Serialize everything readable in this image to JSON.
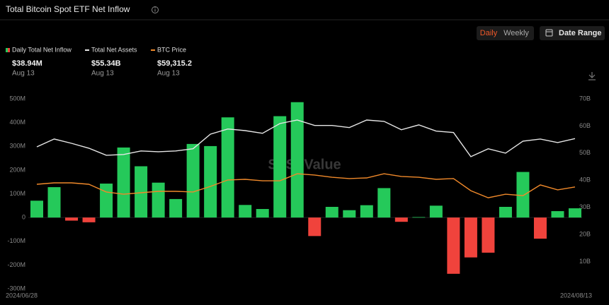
{
  "chart_data": {
    "type": "bar",
    "title": "Total Bitcoin Spot ETF Net Inflow",
    "controls": [
      "Daily",
      "Weekly",
      "Date Range"
    ],
    "active_control": 0,
    "watermark": "SoSoValue",
    "categories": [
      "2024/06/28",
      null,
      null,
      null,
      null,
      null,
      null,
      null,
      null,
      null,
      null,
      null,
      null,
      null,
      null,
      null,
      null,
      null,
      null,
      null,
      null,
      null,
      null,
      null,
      null,
      null,
      null,
      null,
      null,
      null,
      null,
      "2024/08/13"
    ],
    "ylim": [
      -300,
      500
    ],
    "yticks": [
      {
        "value": 500,
        "label": "500M"
      },
      {
        "value": 400,
        "label": "400M"
      },
      {
        "value": 300,
        "label": "300M"
      },
      {
        "value": 200,
        "label": "200M"
      },
      {
        "value": 100,
        "label": "100M"
      },
      0,
      {
        "value": -100,
        "label": "-100M"
      },
      {
        "value": -200,
        "label": "-200M"
      },
      {
        "value": -300,
        "label": "-300M"
      }
    ],
    "y2lim": [
      0,
      70
    ],
    "y2ticks": [
      {
        "value": 70,
        "label": "70B"
      },
      {
        "value": 60,
        "label": "60B"
      },
      {
        "value": 50,
        "label": "50B"
      },
      {
        "value": 40,
        "label": "40B"
      },
      {
        "value": 30,
        "label": "30B"
      },
      {
        "value": 20,
        "label": "20B"
      },
      {
        "value": 10,
        "label": "10B"
      }
    ],
    "y3lim": [
      10000,
      102000
    ],
    "series": [
      {
        "name": "Daily Total Net Inflow",
        "type": "bar",
        "color": "#25c95a",
        "negative_color": "#f0433c",
        "latest_label": "$38.94M",
        "latest_date": "Aug 13",
        "values": [
          71,
          128,
          -13,
          -20,
          143,
          295,
          216,
          147,
          78,
          310,
          301,
          422,
          53,
          36,
          427,
          486,
          -78,
          45,
          31,
          52,
          124,
          -18,
          2,
          50,
          -237,
          -168,
          -148,
          45,
          192,
          -89,
          27,
          38.94
        ]
      },
      {
        "name": "Total Net Assets",
        "type": "line",
        "axis": "y2",
        "color": "#e6e6e6",
        "latest_label": "$55.34B",
        "latest_date": "Aug 13",
        "values": [
          52.3,
          55.2,
          53.6,
          51.8,
          49.2,
          49.5,
          50.8,
          50.5,
          50.8,
          51.6,
          57.0,
          58.9,
          58.3,
          57.3,
          60.9,
          62.2,
          60.2,
          60.2,
          59.4,
          62.2,
          61.7,
          58.6,
          60.4,
          58.1,
          57.6,
          48.7,
          51.6,
          50.0,
          54.4,
          55.2,
          53.9,
          55.34
        ]
      },
      {
        "name": "BTC Price",
        "type": "line",
        "axis": "y3",
        "color": "#f0892a",
        "latest_label": "$59,315.2",
        "latest_date": "Aug 13",
        "values": [
          60600,
          61300,
          61300,
          60600,
          56900,
          55800,
          56500,
          57200,
          57200,
          56900,
          59600,
          62700,
          63000,
          62300,
          62300,
          65700,
          65100,
          64000,
          63400,
          63700,
          65700,
          64400,
          64000,
          63000,
          63400,
          57500,
          54100,
          55800,
          55100,
          60300,
          57900,
          59315.2
        ]
      }
    ]
  }
}
